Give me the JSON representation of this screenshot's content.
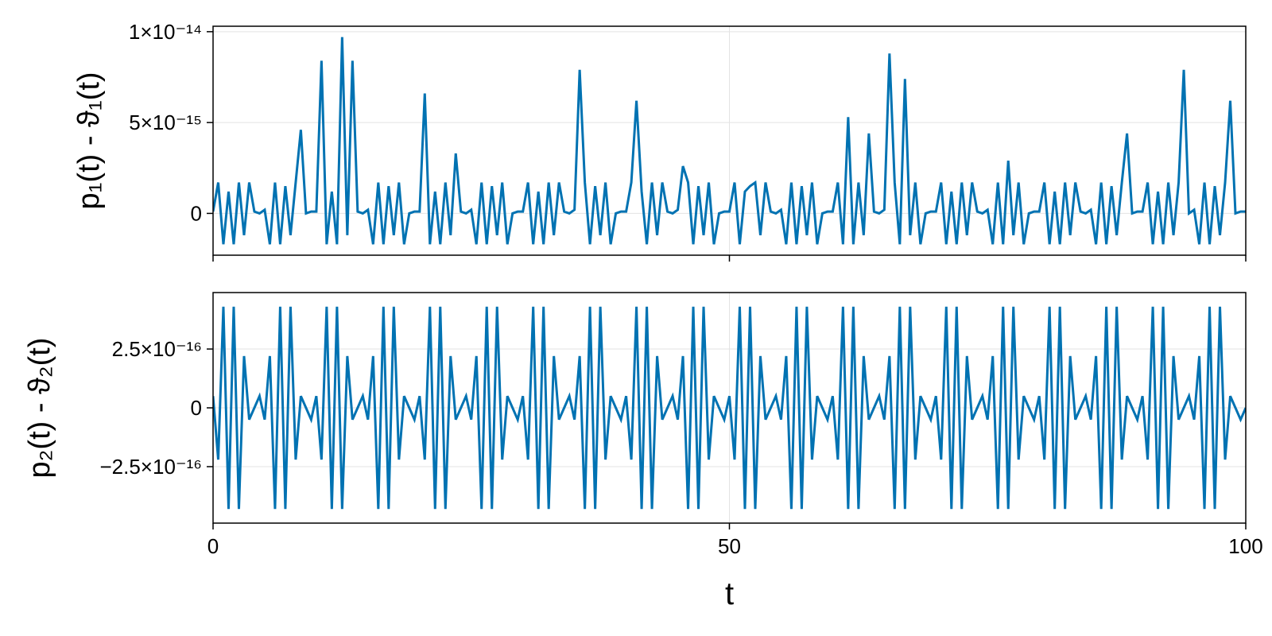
{
  "chart_data": [
    {
      "type": "line",
      "ylabel": "p₁(t) - ϑ₁(t)",
      "xlim": [
        0,
        100
      ],
      "xticks": [
        0,
        50,
        100
      ],
      "ylim": [
        -2.3e-15,
        1.03e-14
      ],
      "yticks": [
        0,
        {
          "value": 5e-15,
          "label": "5×10⁻¹⁵"
        },
        {
          "value": 1e-14,
          "label": "1×10⁻¹⁴"
        }
      ],
      "grid": true,
      "x": [
        0,
        0.5,
        1,
        1.5,
        2,
        2.5,
        3,
        3.5,
        4,
        4.5,
        5,
        5.5,
        6,
        6.5,
        7,
        7.5,
        8,
        8.5,
        9,
        9.5,
        10,
        10.5,
        11,
        11.5,
        12,
        12.5,
        13,
        13.5,
        14,
        14.5,
        15,
        15.5,
        16,
        16.5,
        17,
        17.5,
        18,
        18.5,
        19,
        19.5,
        20,
        20.5,
        21,
        21.5,
        22,
        22.5,
        23,
        23.5,
        24,
        24.5,
        25,
        25.5,
        26,
        26.5,
        27,
        27.5,
        28,
        28.5,
        29,
        29.5,
        30,
        30.5,
        31,
        31.5,
        32,
        32.5,
        33,
        33.5,
        34,
        34.5,
        35,
        35.5,
        36,
        36.5,
        37,
        37.5,
        38,
        38.5,
        39,
        39.5,
        40,
        40.5,
        41,
        41.5,
        42,
        42.5,
        43,
        43.5,
        44,
        44.5,
        45,
        45.5,
        46,
        46.5,
        47,
        47.5,
        48,
        48.5,
        49,
        49.5,
        50,
        50.5,
        51,
        51.5,
        52,
        52.5,
        53,
        53.5,
        54,
        54.5,
        55,
        55.5,
        56,
        56.5,
        57,
        57.5,
        58,
        58.5,
        59,
        59.5,
        60,
        60.5,
        61,
        61.5,
        62,
        62.5,
        63,
        63.5,
        64,
        64.5,
        65,
        65.5,
        66,
        66.5,
        67,
        67.5,
        68,
        68.5,
        69,
        69.5,
        70,
        70.5,
        71,
        71.5,
        72,
        72.5,
        73,
        73.5,
        74,
        74.5,
        75,
        75.5,
        76,
        76.5,
        77,
        77.5,
        78,
        78.5,
        79,
        79.5,
        80,
        80.5,
        81,
        81.5,
        82,
        82.5,
        83,
        83.5,
        84,
        84.5,
        85,
        85.5,
        86,
        86.5,
        87,
        87.5,
        88,
        88.5,
        89,
        89.5,
        90,
        90.5,
        91,
        91.5,
        92,
        92.5,
        93,
        93.5,
        94,
        94.5,
        95,
        95.5,
        96,
        96.5,
        97,
        97.5,
        98,
        98.5,
        99,
        99.5,
        100
      ],
      "series": [
        {
          "color": "#0072b2",
          "values": [
            1e-16,
            1.7e-15,
            -1.7e-15,
            1.2e-15,
            -1.7e-15,
            1.7e-15,
            -1.2e-15,
            1.7e-15,
            1e-16,
            0,
            2e-16,
            -1.7e-15,
            1.7e-15,
            -1.7e-15,
            1.5e-15,
            -1.2e-15,
            1.7e-15,
            4.6e-15,
            0,
            1e-16,
            1e-16,
            8.4e-15,
            -1.7e-15,
            1.2e-15,
            -1.7e-15,
            9.7e-15,
            -1.2e-15,
            8.4e-15,
            1e-16,
            0,
            2e-16,
            -1.7e-15,
            1.7e-15,
            -1.7e-15,
            1.5e-15,
            -1.2e-15,
            1.7e-15,
            -1.7e-15,
            0,
            1e-16,
            1e-16,
            6.6e-15,
            -1.7e-15,
            1.2e-15,
            -1.7e-15,
            1.7e-15,
            -1.2e-15,
            3.3e-15,
            1e-16,
            0,
            2e-16,
            -1.7e-15,
            1.7e-15,
            -1.7e-15,
            1.5e-15,
            -1.2e-15,
            1.7e-15,
            -1.7e-15,
            0,
            1e-16,
            1e-16,
            1.7e-15,
            -1.7e-15,
            1.2e-15,
            -1.7e-15,
            1.7e-15,
            -1.2e-15,
            1.7e-15,
            1e-16,
            0,
            2e-16,
            7.9e-15,
            1.7e-15,
            -1.7e-15,
            1.5e-15,
            -1.2e-15,
            1.7e-15,
            -1.7e-15,
            0,
            1e-16,
            1e-16,
            1.7e-15,
            6.2e-15,
            1.2e-15,
            -1.7e-15,
            1.7e-15,
            -1.2e-15,
            1.7e-15,
            1e-16,
            0,
            2e-16,
            2.6e-15,
            1.7e-15,
            -1.7e-15,
            1.5e-15,
            -1.2e-15,
            1.7e-15,
            -1.7e-15,
            0,
            1e-16,
            1e-16,
            1.7e-15,
            -1.7e-15,
            1.2e-15,
            1.5e-15,
            1.7e-15,
            -1.2e-15,
            1.7e-15,
            1e-16,
            0,
            2e-16,
            -1.7e-15,
            1.7e-15,
            -1.7e-15,
            1.5e-15,
            -1.2e-15,
            1.7e-15,
            -1.7e-15,
            0,
            1e-16,
            1e-16,
            1.7e-15,
            -1.7e-15,
            5.3e-15,
            -1.7e-15,
            1.7e-15,
            -1.2e-15,
            4.4e-15,
            1e-16,
            0,
            2e-16,
            8.8e-15,
            1.7e-15,
            -1.7e-15,
            7.4e-15,
            -1.2e-15,
            1.7e-15,
            -1.7e-15,
            0,
            1e-16,
            1e-16,
            1.7e-15,
            -1.7e-15,
            1.2e-15,
            -1.7e-15,
            1.7e-15,
            -1.2e-15,
            1.7e-15,
            1e-16,
            0,
            2e-16,
            -1.7e-15,
            1.7e-15,
            -1.7e-15,
            2.9e-15,
            -1.2e-15,
            1.7e-15,
            -1.7e-15,
            0,
            1e-16,
            1e-16,
            1.7e-15,
            -1.7e-15,
            1.2e-15,
            -1.7e-15,
            1.7e-15,
            -1.2e-15,
            1.7e-15,
            1e-16,
            0,
            2e-16,
            -1.7e-15,
            1.7e-15,
            -1.7e-15,
            1.5e-15,
            -1.2e-15,
            1.7e-15,
            4.4e-15,
            0,
            1e-16,
            1e-16,
            1.7e-15,
            -1.7e-15,
            1.2e-15,
            -1.7e-15,
            1.7e-15,
            -1.2e-15,
            1.7e-15,
            7.9e-15,
            0,
            2e-16,
            -1.7e-15,
            1.7e-15,
            -1.7e-15,
            1.5e-15,
            -1.2e-15,
            1.7e-15,
            6.2e-15,
            0,
            1e-16,
            1e-16
          ]
        }
      ]
    },
    {
      "type": "line",
      "xlabel": "t",
      "ylabel": "p₂(t) - ϑ₂(t)",
      "xlim": [
        0,
        100
      ],
      "xticks": [
        0,
        50,
        100
      ],
      "ylim": [
        -4.9e-16,
        4.9e-16
      ],
      "yticks": [
        {
          "value": -2.5e-16,
          "label": "−2.5×10⁻¹⁶"
        },
        0,
        {
          "value": 2.5e-16,
          "label": "2.5×10⁻¹⁶"
        }
      ],
      "grid": true,
      "x": [
        0,
        0.5,
        1,
        1.5,
        2,
        2.5,
        3,
        3.5,
        4,
        4.5,
        5,
        5.5,
        6,
        6.5,
        7,
        7.5,
        8,
        8.5,
        9,
        9.5,
        10,
        10.5,
        11,
        11.5,
        12,
        12.5,
        13,
        13.5,
        14,
        14.5,
        15,
        15.5,
        16,
        16.5,
        17,
        17.5,
        18,
        18.5,
        19,
        19.5,
        20,
        20.5,
        21,
        21.5,
        22,
        22.5,
        23,
        23.5,
        24,
        24.5,
        25,
        25.5,
        26,
        26.5,
        27,
        27.5,
        28,
        28.5,
        29,
        29.5,
        30,
        30.5,
        31,
        31.5,
        32,
        32.5,
        33,
        33.5,
        34,
        34.5,
        35,
        35.5,
        36,
        36.5,
        37,
        37.5,
        38,
        38.5,
        39,
        39.5,
        40,
        40.5,
        41,
        41.5,
        42,
        42.5,
        43,
        43.5,
        44,
        44.5,
        45,
        45.5,
        46,
        46.5,
        47,
        47.5,
        48,
        48.5,
        49,
        49.5,
        50,
        50.5,
        51,
        51.5,
        52,
        52.5,
        53,
        53.5,
        54,
        54.5,
        55,
        55.5,
        56,
        56.5,
        57,
        57.5,
        58,
        58.5,
        59,
        59.5,
        60,
        60.5,
        61,
        61.5,
        62,
        62.5,
        63,
        63.5,
        64,
        64.5,
        65,
        65.5,
        66,
        66.5,
        67,
        67.5,
        68,
        68.5,
        69,
        69.5,
        70,
        70.5,
        71,
        71.5,
        72,
        72.5,
        73,
        73.5,
        74,
        74.5,
        75,
        75.5,
        76,
        76.5,
        77,
        77.5,
        78,
        78.5,
        79,
        79.5,
        80,
        80.5,
        81,
        81.5,
        82,
        82.5,
        83,
        83.5,
        84,
        84.5,
        85,
        85.5,
        86,
        86.5,
        87,
        87.5,
        88,
        88.5,
        89,
        89.5,
        90,
        90.5,
        91,
        91.5,
        92,
        92.5,
        93,
        93.5,
        94,
        94.5,
        95,
        95.5,
        96,
        96.5,
        97,
        97.5,
        98,
        98.5,
        99,
        99.5,
        100
      ],
      "series": [
        {
          "color": "#0072b2",
          "values": [
            5e-17,
            -2.2e-16,
            4.3e-16,
            -4.3e-16,
            4.3e-16,
            -4.3e-16,
            2.2e-16,
            -5e-17,
            0,
            5e-17,
            -5e-17,
            2.2e-16,
            -4.3e-16,
            4.3e-16,
            -4.3e-16,
            4.3e-16,
            -2.2e-16,
            5e-17,
            0,
            -5e-17,
            5e-17,
            -2.2e-16,
            4.3e-16,
            -4.3e-16,
            4.3e-16,
            -4.3e-16,
            2.2e-16,
            -5e-17,
            0,
            5e-17,
            -5e-17,
            2.2e-16,
            -4.3e-16,
            4.3e-16,
            -4.3e-16,
            4.3e-16,
            -2.2e-16,
            5e-17,
            0,
            -5e-17,
            5e-17,
            -2.2e-16,
            4.3e-16,
            -4.3e-16,
            4.3e-16,
            -4.3e-16,
            2.2e-16,
            -5e-17,
            0,
            5e-17,
            -5e-17,
            2.2e-16,
            -4.3e-16,
            4.3e-16,
            -4.3e-16,
            4.3e-16,
            -2.2e-16,
            5e-17,
            0,
            -5e-17,
            5e-17,
            -2.2e-16,
            4.3e-16,
            -4.3e-16,
            4.3e-16,
            -4.3e-16,
            2.2e-16,
            -5e-17,
            0,
            5e-17,
            -5e-17,
            2.2e-16,
            -4.3e-16,
            4.3e-16,
            -4.3e-16,
            4.3e-16,
            -2.2e-16,
            5e-17,
            0,
            -5e-17,
            5e-17,
            -2.2e-16,
            4.3e-16,
            -4.3e-16,
            4.3e-16,
            -4.3e-16,
            2.2e-16,
            -5e-17,
            0,
            5e-17,
            -5e-17,
            2.2e-16,
            -4.3e-16,
            4.3e-16,
            -4.3e-16,
            4.3e-16,
            -2.2e-16,
            5e-17,
            0,
            -5e-17,
            5e-17,
            -2.2e-16,
            4.3e-16,
            -4.3e-16,
            4.3e-16,
            -4.3e-16,
            2.2e-16,
            -5e-17,
            0,
            5e-17,
            -5e-17,
            2.2e-16,
            -4.3e-16,
            4.3e-16,
            -4.3e-16,
            4.3e-16,
            -2.2e-16,
            5e-17,
            0,
            -5e-17,
            5e-17,
            -2.2e-16,
            4.3e-16,
            -4.3e-16,
            4.3e-16,
            -4.3e-16,
            2.2e-16,
            -5e-17,
            0,
            5e-17,
            -5e-17,
            2.2e-16,
            -4.3e-16,
            4.3e-16,
            -4.3e-16,
            4.3e-16,
            -2.2e-16,
            5e-17,
            0,
            -5e-17,
            5e-17,
            -2.2e-16,
            4.3e-16,
            -4.3e-16,
            4.3e-16,
            -4.3e-16,
            2.2e-16,
            -5e-17,
            0,
            5e-17,
            -5e-17,
            2.2e-16,
            -4.3e-16,
            4.3e-16,
            -4.3e-16,
            4.3e-16,
            -2.2e-16,
            5e-17,
            0,
            -5e-17,
            5e-17,
            -2.2e-16,
            4.3e-16,
            -4.3e-16,
            4.3e-16,
            -4.3e-16,
            2.2e-16,
            -5e-17,
            0,
            5e-17,
            -5e-17,
            2.2e-16,
            -4.3e-16,
            4.3e-16,
            -4.3e-16,
            4.3e-16,
            -2.2e-16,
            5e-17,
            0,
            -5e-17,
            5e-17,
            -2.2e-16,
            4.3e-16,
            -4.3e-16,
            4.3e-16,
            -4.3e-16,
            2.2e-16,
            -5e-17,
            0,
            5e-17,
            -5e-17,
            2.2e-16,
            -4.3e-16,
            4.3e-16,
            -4.3e-16,
            4.3e-16,
            -2.2e-16,
            5e-17,
            0,
            -5e-17,
            0
          ]
        }
      ]
    }
  ]
}
